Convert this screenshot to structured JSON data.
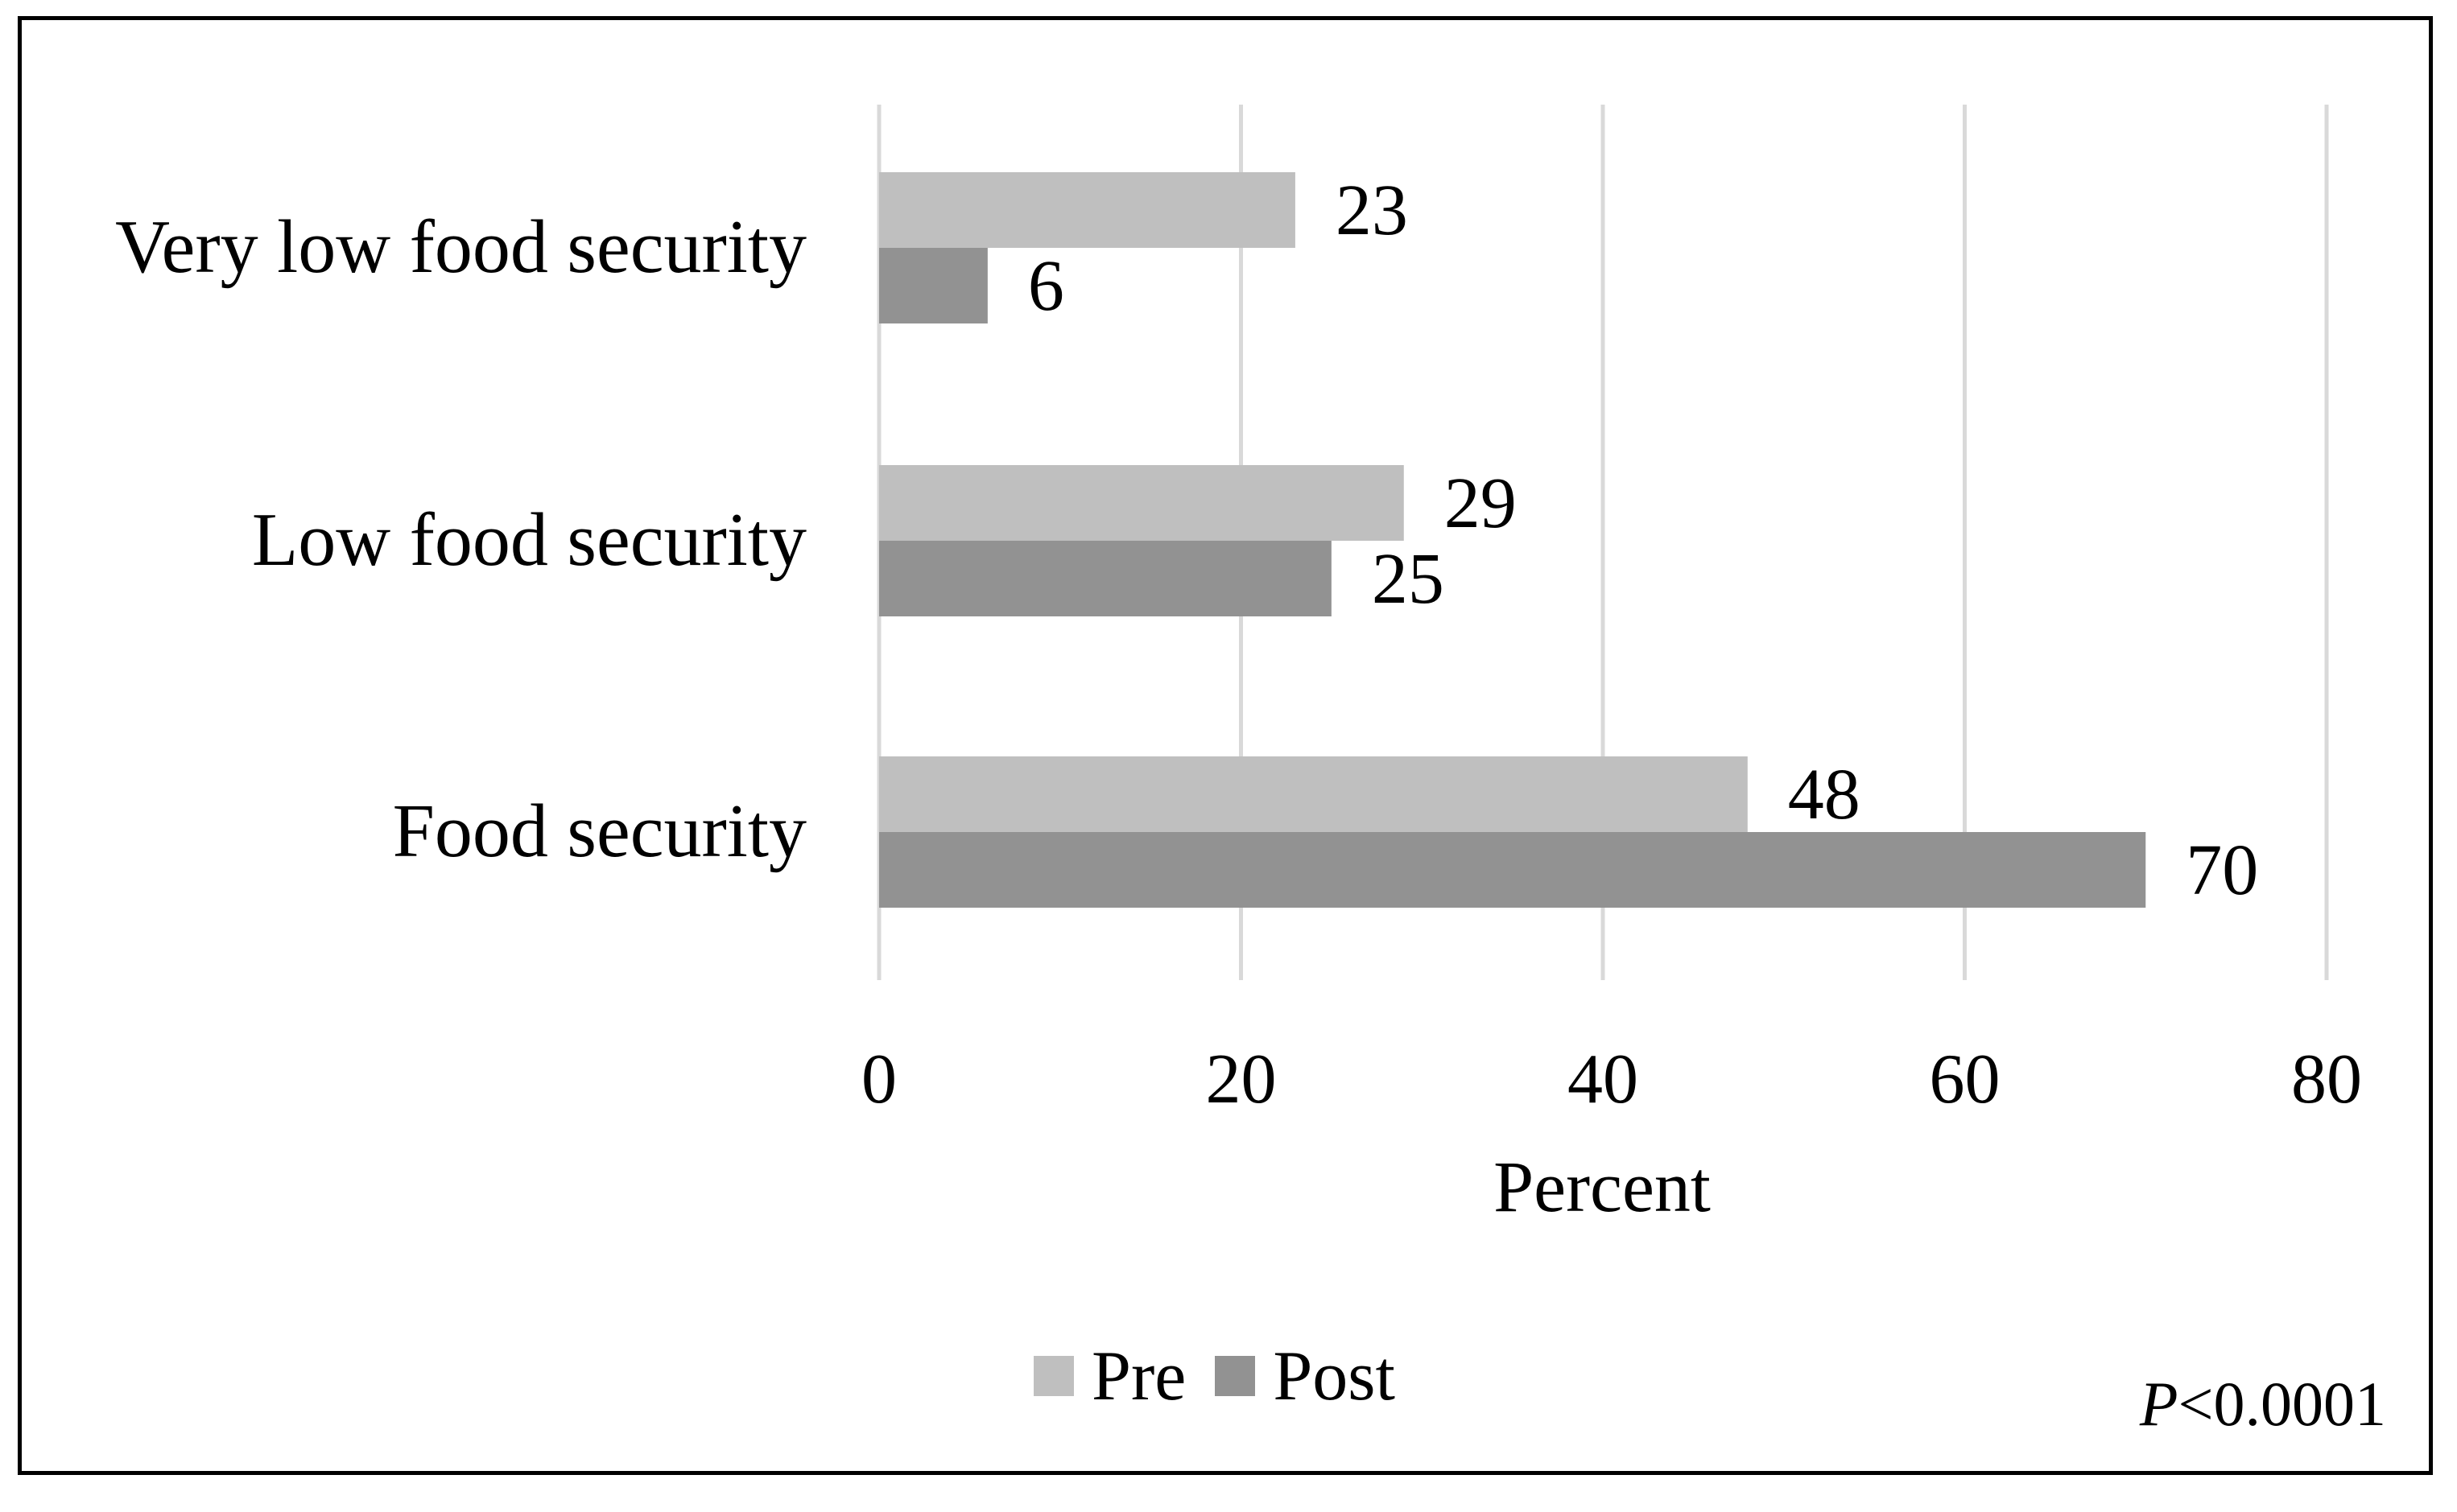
{
  "chart_data": {
    "type": "bar",
    "orientation": "horizontal",
    "categories": [
      "Very low food security",
      "Low food security",
      "Food security"
    ],
    "series": [
      {
        "name": "Pre",
        "values": [
          23,
          29,
          48
        ],
        "color": "#bfbfbf"
      },
      {
        "name": "Post",
        "values": [
          6,
          25,
          70
        ],
        "color": "#929292"
      }
    ],
    "xlabel": "Percent",
    "xlim": [
      0,
      80
    ],
    "xticks": [
      "0",
      "20",
      "40",
      "60",
      "80"
    ],
    "grid": "vertical",
    "legend_position": "bottom"
  },
  "annotation": {
    "p_letter": "P",
    "p_rest": "<0.0001"
  }
}
